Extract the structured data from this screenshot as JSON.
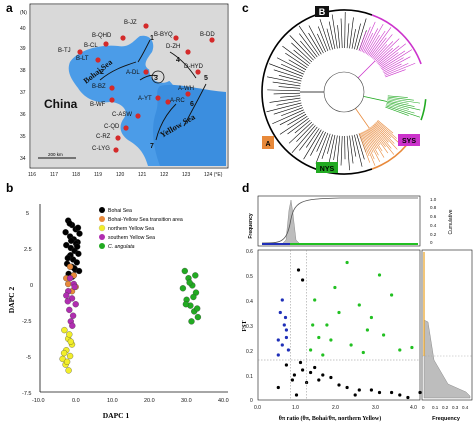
{
  "panels": {
    "a": {
      "label": "a",
      "map": {
        "lat_ticks": [
          "(N)",
          "40",
          "39",
          "38",
          "37",
          "36",
          "35",
          "34"
        ],
        "lon_ticks": [
          "116",
          "117",
          "118",
          "119",
          "120",
          "121",
          "122",
          "123",
          "124 (°E)"
        ],
        "sea_labels": [
          "Bohai Sea",
          "Yellow Sea"
        ],
        "country_label": "China",
        "scale_label": "200 km",
        "sites": [
          "B-JZ",
          "B-QHD",
          "B-CL",
          "B-TJ",
          "B-LT",
          "B-BYQ",
          "B-DD",
          "D-ZH",
          "D-HYD",
          "A-DL",
          "B-BZ",
          "B-WF",
          "A-YT",
          "A-RC",
          "A-WH",
          "C-ASW",
          "C-QD",
          "C-RZ",
          "C-LYG"
        ],
        "current_numbers": [
          "1",
          "2",
          "3",
          "4",
          "5",
          "6",
          "7"
        ]
      }
    },
    "b": {
      "label": "b",
      "legend": [
        "Bohai Sea",
        "Bohai-Yellow Sea transition area",
        "northern Yellow Sea",
        "southern Yellow Sea",
        "C. angulata"
      ],
      "colors": [
        "#000000",
        "#e8893a",
        "#f2ee2a",
        "#b02eb0",
        "#22aa22"
      ],
      "chart_data": {
        "type": "scatter",
        "xlabel": "DAPC 1",
        "ylabel": "DAPC 2",
        "xlim": [
          -10,
          40
        ],
        "ylim": [
          -7.5,
          5
        ],
        "x_ticks": [
          "-10.0",
          "0.0",
          "10.0",
          "20.0",
          "30.0",
          "40.0"
        ],
        "y_ticks": [
          "5",
          "2.5",
          "0",
          "-2.5",
          "-5",
          "-7.5"
        ],
        "series": [
          {
            "name": "Bohai Sea",
            "x": [
              -2.5,
              -1.5,
              -0.5,
              0.5,
              -2.0,
              -1.0,
              0.0,
              -3.0,
              -1.8,
              -0.8,
              0.2,
              -2.2,
              -1.2,
              -0.2,
              -2.8,
              -1.6,
              -0.6,
              0.4,
              -2.4,
              -1.4,
              -0.4,
              -3.2,
              -1.9,
              -0.9,
              0.1,
              -2.1,
              -1.1,
              -0.1,
              -2.6,
              -1.7
            ],
            "y": [
              4.4,
              4.1,
              3.8,
              3.5,
              3.3,
              3.1,
              2.9,
              2.7,
              2.5,
              2.3,
              2.1,
              1.9,
              1.7,
              1.5,
              1.4,
              1.2,
              1.0,
              0.9,
              0.7,
              0.5,
              2.8,
              3.6,
              2.0,
              1.1,
              3.9,
              4.2,
              0.6,
              2.6,
              1.8,
              3.0
            ]
          },
          {
            "name": "Bohai-Yellow Sea transition area",
            "x": [
              -2.0,
              -1.0,
              -2.5,
              -1.5,
              -3.0,
              -0.5
            ],
            "y": [
              1.2,
              0.6,
              0.0,
              -0.5,
              0.4,
              -0.2
            ]
          },
          {
            "name": "northern Yellow Sea",
            "x": [
              -3.5,
              -2.5,
              -1.5,
              -3.0,
              -2.0,
              -4.0,
              -3.2,
              -2.4,
              -1.8,
              -3.6,
              -2.8,
              -2.2
            ],
            "y": [
              -3.2,
              -3.8,
              -4.2,
              -4.6,
              -5.0,
              -5.2,
              -5.6,
              -6.0,
              -4.0,
              -4.8,
              -5.4,
              -3.5
            ]
          },
          {
            "name": "southern Yellow Sea",
            "x": [
              -2.0,
              -1.0,
              -2.5,
              -1.5,
              -0.5,
              -2.2,
              -1.2,
              -3.0,
              -1.8,
              -0.8,
              -2.6,
              -1.4
            ],
            "y": [
              0.4,
              0.0,
              -0.5,
              -1.0,
              -1.4,
              -1.8,
              -2.2,
              -0.8,
              -2.6,
              -0.2,
              -1.2,
              -2.9
            ]
          },
          {
            "name": "C. angulata",
            "x": [
              28.5,
              29.5,
              30.5,
              31.5,
              29.0,
              30.0,
              31.0,
              28.0,
              32.0,
              29.8,
              30.8,
              31.8,
              28.8,
              30.3,
              31.3
            ],
            "y": [
              0.9,
              0.4,
              -0.1,
              -0.6,
              -1.1,
              -1.5,
              -1.9,
              -0.3,
              -2.3,
              0.1,
              -0.9,
              -1.7,
              -1.4,
              -2.6,
              0.6
            ]
          }
        ]
      }
    },
    "c": {
      "label": "c",
      "clade_labels": [
        "B",
        "A",
        "NYS",
        "SYS"
      ],
      "colors": {
        "B": "#000000",
        "A": "#e8893a",
        "NYS": "#22aa22",
        "SYS": "#cc33cc"
      }
    },
    "d": {
      "label": "d",
      "colors": {
        "black": "#000000",
        "blue": "#1f2fb8",
        "green": "#22c022"
      },
      "chart_data": {
        "type": "scatter",
        "xlabel": "θπ ratio (θπ, Bohai/θπ, northern Yellow)",
        "ylabel": "FST",
        "xlim": [
          0,
          4
        ],
        "ylim": [
          0,
          0.6
        ],
        "x_ticks": [
          "0.0",
          "1.0",
          "2.0",
          "3.0",
          "4.0"
        ],
        "y_ticks": [
          "0.6",
          "0.5",
          "0.4",
          "0.3",
          "0.2",
          "0.1",
          "0"
        ],
        "thresholds": {
          "x_low": 0.8,
          "x_high": 1.2,
          "fst": 0.16
        },
        "series": [
          {
            "name": "background",
            "x": [
              0.5,
              0.9,
              1.1,
              1.5,
              2.0,
              2.5,
              3.0,
              3.5,
              0.7,
              1.3,
              1.8,
              2.2,
              2.8,
              3.3,
              0.95,
              1.05,
              1.2,
              1.4,
              1.6,
              0.85,
              2.4,
              3.7,
              4.0,
              1.0,
              1.1
            ],
            "y": [
              0.05,
              0.1,
              0.12,
              0.08,
              0.06,
              0.04,
              0.03,
              0.02,
              0.14,
              0.11,
              0.09,
              0.05,
              0.04,
              0.03,
              0.02,
              0.15,
              0.07,
              0.13,
              0.1,
              0.08,
              0.02,
              0.01,
              0.03,
              0.52,
              0.48
            ]
          },
          {
            "name": "low-ratio outliers",
            "x": [
              0.5,
              0.6,
              0.7,
              0.65,
              0.55,
              0.75,
              0.6,
              0.7,
              0.5,
              0.68
            ],
            "y": [
              0.18,
              0.22,
              0.25,
              0.3,
              0.35,
              0.2,
              0.4,
              0.28,
              0.24,
              0.33
            ]
          },
          {
            "name": "high-ratio outliers",
            "x": [
              1.3,
              1.5,
              1.7,
              2.0,
              2.3,
              2.7,
              3.1,
              3.5,
              1.4,
              1.9,
              2.5,
              3.0,
              1.6,
              2.2,
              2.8,
              3.3,
              1.35,
              1.8,
              2.6,
              3.8
            ],
            "y": [
              0.2,
              0.25,
              0.3,
              0.35,
              0.22,
              0.28,
              0.26,
              0.2,
              0.4,
              0.45,
              0.38,
              0.5,
              0.18,
              0.55,
              0.33,
              0.42,
              0.3,
              0.24,
              0.19,
              0.21
            ]
          }
        ]
      },
      "top_hist": {
        "ylabel": "Frequency",
        "right_label": "Cumulative",
        "ticks": [
          "0",
          "0.2",
          "0.4",
          "0.6",
          "0.8",
          "1.0"
        ]
      },
      "right_hist": {
        "xlabel": "Frequency",
        "ticks": [
          "0",
          "0.1",
          "0.2",
          "0.3",
          "0.4"
        ]
      }
    }
  }
}
